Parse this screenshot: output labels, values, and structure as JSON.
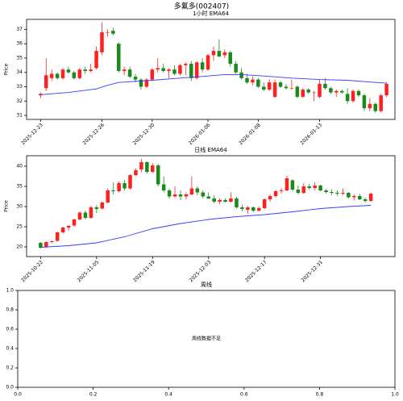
{
  "title": "多氟多(002407)",
  "chart_data": [
    {
      "type": "candlestick",
      "title": "1小时 EMA64",
      "ylabel": "Price",
      "up_color": "#ff2020",
      "down_color": "#1a8a1a",
      "xlim": [
        -2.5,
        63.5
      ],
      "ylim": [
        30.72,
        37.7
      ],
      "yticks": [
        31,
        32,
        33,
        34,
        35,
        36,
        37
      ],
      "xticks": [
        {
          "value": 0,
          "label": "2025-12-23"
        },
        {
          "value": 11,
          "label": "2025-12-26"
        },
        {
          "value": 20,
          "label": "2025-12-30"
        },
        {
          "value": 30,
          "label": "2026-01-06"
        },
        {
          "value": 39,
          "label": "2026-01-08"
        },
        {
          "value": 50,
          "label": "2026-01-13"
        }
      ],
      "open": [
        32.4,
        32.9,
        33.6,
        33.9,
        33.6,
        34.2,
        34.0,
        33.6,
        34.2,
        34.1,
        34.3,
        35.4,
        36.8,
        36.9,
        36.0,
        34.1,
        34.2,
        33.7,
        33.5,
        33.0,
        33.5,
        34.2,
        34.3,
        34.1,
        34.2,
        33.9,
        34.5,
        34.6,
        33.6,
        34.7,
        34.2,
        35.2,
        35.5,
        35.2,
        35.4,
        34.6,
        34.0,
        33.6,
        33.3,
        33.5,
        33.0,
        32.8,
        32.3,
        33.3,
        33.0,
        32.9,
        33.0,
        32.3,
        32.8,
        32.6,
        32.3,
        33.2,
        32.9,
        32.6,
        32.7,
        32.5,
        32.0,
        32.7,
        32.4,
        31.5,
        31.8,
        31.3,
        32.4
      ],
      "high": [
        32.6,
        35.0,
        34.2,
        34.0,
        34.3,
        34.4,
        34.1,
        34.3,
        34.4,
        34.6,
        35.8,
        37.5,
        37.0,
        37.1,
        36.1,
        34.4,
        34.4,
        33.9,
        33.6,
        33.6,
        34.3,
        35.0,
        34.6,
        34.3,
        34.5,
        34.6,
        34.7,
        34.8,
        34.8,
        35.0,
        35.3,
        35.8,
        36.3,
        35.6,
        35.5,
        34.8,
        34.3,
        33.9,
        33.7,
        33.6,
        33.3,
        33.5,
        33.5,
        33.4,
        33.2,
        33.5,
        33.1,
        32.9,
        32.9,
        32.7,
        33.5,
        33.6,
        33.0,
        32.8,
        32.8,
        32.9,
        32.8,
        32.8,
        32.5,
        32.2,
        31.9,
        32.5,
        33.3
      ],
      "low": [
        32.2,
        32.7,
        33.4,
        33.5,
        33.5,
        33.9,
        33.5,
        33.5,
        33.9,
        34.0,
        34.2,
        35.2,
        36.5,
        36.6,
        34.0,
        33.8,
        33.6,
        33.3,
        32.8,
        32.9,
        33.4,
        34.0,
        34.0,
        33.6,
        33.8,
        33.8,
        33.8,
        33.4,
        33.5,
        34.0,
        34.1,
        34.8,
        35.1,
        35.0,
        34.4,
        33.9,
        33.5,
        33.2,
        33.1,
        32.9,
        32.7,
        32.7,
        32.2,
        32.9,
        32.8,
        32.8,
        32.2,
        32.2,
        32.5,
        32.0,
        32.2,
        32.8,
        32.5,
        32.3,
        32.5,
        31.8,
        31.9,
        32.3,
        31.3,
        31.3,
        31.2,
        31.2,
        32.3
      ],
      "close": [
        32.5,
        33.8,
        33.9,
        33.6,
        34.2,
        34.0,
        33.6,
        34.2,
        34.1,
        34.2,
        35.5,
        36.8,
        36.8,
        36.7,
        34.1,
        34.2,
        33.7,
        33.5,
        33.0,
        33.5,
        34.2,
        34.3,
        34.1,
        34.2,
        33.9,
        34.5,
        34.6,
        33.6,
        34.7,
        34.2,
        35.2,
        35.5,
        35.1,
        35.4,
        34.6,
        34.0,
        33.6,
        33.3,
        33.5,
        33.0,
        32.8,
        33.3,
        33.3,
        33.0,
        32.9,
        32.9,
        32.3,
        32.8,
        32.6,
        32.6,
        33.2,
        32.9,
        32.6,
        32.7,
        32.6,
        32.0,
        32.7,
        32.4,
        31.5,
        31.8,
        31.3,
        32.4,
        33.2
      ],
      "ema": {
        "color": "#3a3aff",
        "x": [
          0,
          5,
          10,
          12,
          14,
          20,
          25,
          30,
          33,
          36,
          40,
          45,
          50,
          55,
          60,
          62
        ],
        "values": [
          32.45,
          32.6,
          32.85,
          33.1,
          33.3,
          33.45,
          33.6,
          33.75,
          33.85,
          33.85,
          33.75,
          33.6,
          33.5,
          33.45,
          33.3,
          33.25
        ]
      }
    },
    {
      "type": "candlestick",
      "title": "日线 EMA64",
      "ylabel": "Price",
      "up_color": "#ff2020",
      "down_color": "#1a8a1a",
      "xlim": [
        -2.5,
        63.3
      ],
      "ylim": [
        17.6,
        42.6
      ],
      "yticks": [
        20,
        25,
        30,
        35,
        40
      ],
      "xticks": [
        {
          "value": 0,
          "label": "2025-10-22"
        },
        {
          "value": 10,
          "label": "2025-11-05"
        },
        {
          "value": 20,
          "label": "2025-11-19"
        },
        {
          "value": 30,
          "label": "2025-12-03"
        },
        {
          "value": 40,
          "label": "2025-12-17"
        },
        {
          "value": 50,
          "label": "2025-12-31"
        }
      ],
      "open": [
        21.0,
        19.9,
        21.2,
        21.5,
        23.6,
        24.8,
        25.3,
        26.8,
        28.5,
        27.2,
        29.8,
        29.5,
        31.0,
        34.0,
        33.8,
        35.8,
        34.5,
        37.8,
        39.2,
        41.0,
        38.6,
        40.2,
        35.5,
        34.0,
        32.5,
        33.0,
        32.5,
        33.0,
        34.5,
        33.5,
        32.5,
        32.0,
        31.2,
        31.6,
        31.2,
        32.0,
        29.8,
        29.2,
        29.8,
        29.0,
        29.6,
        31.8,
        32.6,
        33.8,
        34.0,
        36.5,
        34.2,
        33.4,
        35.0,
        34.6,
        35.2,
        34.0,
        33.6,
        33.4,
        33.2,
        33.4,
        32.3,
        32.6,
        31.8,
        31.4
      ],
      "high": [
        21.2,
        21.4,
        21.6,
        23.8,
        25.0,
        25.4,
        27.0,
        28.8,
        29.0,
        30.2,
        30.4,
        31.3,
        34.5,
        36.0,
        36.2,
        36.5,
        38.0,
        39.5,
        41.8,
        41.2,
        40.8,
        40.6,
        37.5,
        34.5,
        35.0,
        34.0,
        33.5,
        37.5,
        35.0,
        34.0,
        33.5,
        32.8,
        32.0,
        32.0,
        33.5,
        32.4,
        30.5,
        30.2,
        30.0,
        30.0,
        32.0,
        33.0,
        34.0,
        34.6,
        37.6,
        36.8,
        35.2,
        35.8,
        35.6,
        36.0,
        35.4,
        34.4,
        34.2,
        34.0,
        34.5,
        33.6,
        33.0,
        33.2,
        32.2,
        33.5
      ],
      "low": [
        19.6,
        19.8,
        20.9,
        21.3,
        23.3,
        24.0,
        25.0,
        26.5,
        26.8,
        27.0,
        28.4,
        29.3,
        30.8,
        33.0,
        33.5,
        34.0,
        34.2,
        37.5,
        38.5,
        38.2,
        38.3,
        35.0,
        33.5,
        32.0,
        32.3,
        31.6,
        31.8,
        32.8,
        32.8,
        32.0,
        31.8,
        30.8,
        30.6,
        31.0,
        31.0,
        29.5,
        28.8,
        28.2,
        28.6,
        28.8,
        29.3,
        31.2,
        32.2,
        33.2,
        33.8,
        33.8,
        33.0,
        33.2,
        34.2,
        34.0,
        33.8,
        33.2,
        32.8,
        32.6,
        32.8,
        32.0,
        31.5,
        31.6,
        31.0,
        31.2
      ],
      "close": [
        19.8,
        21.2,
        21.4,
        23.6,
        24.8,
        25.2,
        26.8,
        28.5,
        27.2,
        29.8,
        29.4,
        31.0,
        34.0,
        33.8,
        35.8,
        34.5,
        37.8,
        39.0,
        41.0,
        38.6,
        40.2,
        35.5,
        34.0,
        32.5,
        33.0,
        32.5,
        33.0,
        34.5,
        33.5,
        32.5,
        32.0,
        31.2,
        31.6,
        31.2,
        32.0,
        29.8,
        29.4,
        29.8,
        29.0,
        29.6,
        31.8,
        32.6,
        33.8,
        34.0,
        37.0,
        34.2,
        33.4,
        35.0,
        34.6,
        35.2,
        34.0,
        33.6,
        33.4,
        33.2,
        33.4,
        32.3,
        32.6,
        31.8,
        31.4,
        33.2
      ],
      "ema": {
        "color": "#3a3aff",
        "x": [
          0,
          5,
          10,
          15,
          20,
          25,
          30,
          35,
          40,
          45,
          50,
          55,
          59
        ],
        "values": [
          19.9,
          20.3,
          21.0,
          22.5,
          24.5,
          25.8,
          26.8,
          27.5,
          28.0,
          28.7,
          29.5,
          30.0,
          30.3
        ]
      }
    },
    {
      "type": "empty",
      "title": "周线",
      "message": "周线数据不足",
      "xlim": [
        0,
        1
      ],
      "ylim": [
        0,
        1
      ],
      "xticks": [
        {
          "value": 0,
          "label": "0.0"
        },
        {
          "value": 0.2,
          "label": "0.2"
        },
        {
          "value": 0.4,
          "label": "0.4"
        },
        {
          "value": 0.6,
          "label": "0.6"
        },
        {
          "value": 0.8,
          "label": "0.8"
        },
        {
          "value": 1,
          "label": "1.0"
        }
      ],
      "yticks": [
        {
          "value": 0,
          "label": "0.0"
        },
        {
          "value": 0.2,
          "label": "0.2"
        },
        {
          "value": 0.4,
          "label": "0.4"
        },
        {
          "value": 0.6,
          "label": "0.6"
        },
        {
          "value": 0.8,
          "label": "0.8"
        },
        {
          "value": 1,
          "label": "1.0"
        }
      ]
    }
  ]
}
